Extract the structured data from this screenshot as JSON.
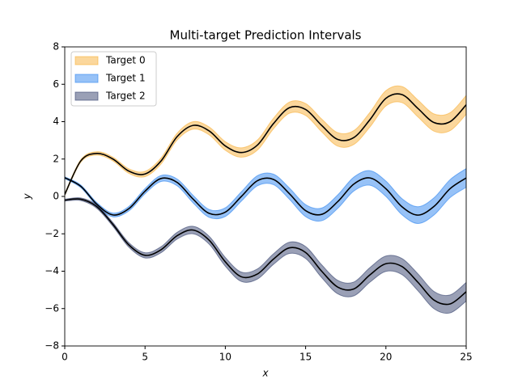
{
  "chart_data": {
    "type": "interval",
    "title": "Multi-target Prediction Intervals",
    "x_label": "x",
    "y_label": "y",
    "x": [
      0,
      1,
      2,
      3,
      4,
      5,
      6,
      7,
      8,
      9,
      10,
      11,
      12,
      13,
      14,
      15,
      16,
      17,
      18,
      19,
      20,
      21,
      22,
      23,
      24,
      25
    ],
    "series": [
      {
        "name": "Target 0",
        "color": "#f8b03a",
        "values": [
          0.1,
          1.9,
          2.3,
          2.0,
          1.35,
          1.2,
          1.9,
          3.2,
          3.8,
          3.5,
          2.7,
          2.35,
          2.75,
          3.9,
          4.75,
          4.65,
          3.8,
          3.05,
          3.15,
          4.1,
          5.25,
          5.45,
          4.7,
          3.95,
          4.0,
          4.9
        ],
        "lower": [
          0.05,
          1.83,
          2.21,
          1.9,
          1.23,
          1.06,
          1.74,
          3.02,
          3.6,
          3.29,
          2.47,
          2.1,
          2.48,
          3.62,
          4.45,
          4.33,
          3.46,
          2.69,
          2.78,
          3.71,
          4.84,
          5.02,
          4.25,
          3.49,
          3.52,
          4.4
        ],
        "upper": [
          0.15,
          1.97,
          2.39,
          2.1,
          1.47,
          1.34,
          2.06,
          3.38,
          4.0,
          3.71,
          2.93,
          2.6,
          3.02,
          4.18,
          5.05,
          4.97,
          4.14,
          3.41,
          3.52,
          4.49,
          5.66,
          5.88,
          5.15,
          4.41,
          4.48,
          5.4
        ]
      },
      {
        "name": "Target 1",
        "color": "#2f86f0",
        "values": [
          1,
          0.54,
          -0.42,
          -0.99,
          -0.65,
          0.28,
          0.96,
          0.75,
          -0.15,
          -0.91,
          -0.84,
          0,
          0.84,
          0.91,
          0.14,
          -0.76,
          -0.96,
          -0.28,
          0.66,
          0.99,
          0.41,
          -0.55,
          -1,
          -0.53,
          0.42,
          0.99
        ],
        "lower": [
          0.95,
          0.47,
          -0.51,
          -1.09,
          -0.77,
          0.14,
          0.8,
          0.57,
          -0.35,
          -1.12,
          -1.07,
          -0.25,
          0.57,
          0.63,
          -0.16,
          -1.08,
          -1.3,
          -0.64,
          0.29,
          0.6,
          0,
          -0.98,
          -1.45,
          -0.99,
          -0.06,
          0.49
        ],
        "upper": [
          1.05,
          0.61,
          -0.33,
          -0.89,
          -0.53,
          0.42,
          1.12,
          0.93,
          0.05,
          -0.7,
          -0.61,
          0.25,
          1.11,
          1.19,
          0.44,
          -0.44,
          -0.62,
          0.08,
          1.03,
          1.38,
          0.82,
          -0.12,
          -0.55,
          -0.07,
          0.9,
          1.49
        ]
      },
      {
        "name": "Target 2",
        "color": "#36426e",
        "values": [
          -0.2,
          -0.15,
          -0.55,
          -1.5,
          -2.6,
          -3.15,
          -2.85,
          -2.1,
          -1.8,
          -2.35,
          -3.5,
          -4.3,
          -4.15,
          -3.35,
          -2.75,
          -3.0,
          -4.0,
          -4.85,
          -4.95,
          -4.2,
          -3.6,
          -3.75,
          -4.6,
          -5.55,
          -5.75,
          -5.1
        ],
        "lower": [
          -0.25,
          -0.22,
          -0.64,
          -1.6,
          -2.72,
          -3.29,
          -3.01,
          -2.28,
          -2.0,
          -2.56,
          -3.73,
          -4.55,
          -4.42,
          -3.63,
          -3.05,
          -3.32,
          -4.34,
          -5.21,
          -5.32,
          -4.59,
          -4.01,
          -4.18,
          -5.05,
          -6.01,
          -6.23,
          -5.6
        ],
        "upper": [
          -0.15,
          -0.08,
          -0.46,
          -1.4,
          -2.48,
          -3.01,
          -2.69,
          -1.92,
          -1.6,
          -2.14,
          -3.27,
          -4.05,
          -3.88,
          -3.07,
          -2.45,
          -2.68,
          -3.66,
          -4.49,
          -4.58,
          -3.81,
          -3.19,
          -3.32,
          -4.15,
          -5.09,
          -5.27,
          -4.6
        ]
      }
    ],
    "line_color": "#000000",
    "xlim": [
      0,
      25
    ],
    "xticks": [
      0,
      5,
      10,
      15,
      20,
      25
    ],
    "ylim": [
      -8,
      8
    ],
    "yticks": [
      {
        "value": -8,
        "label": "−8"
      },
      {
        "value": -6,
        "label": "−6"
      },
      {
        "value": -4,
        "label": "−4"
      },
      {
        "value": -2,
        "label": "−2"
      },
      0,
      2,
      4,
      6,
      8
    ],
    "legend": "upper left"
  }
}
